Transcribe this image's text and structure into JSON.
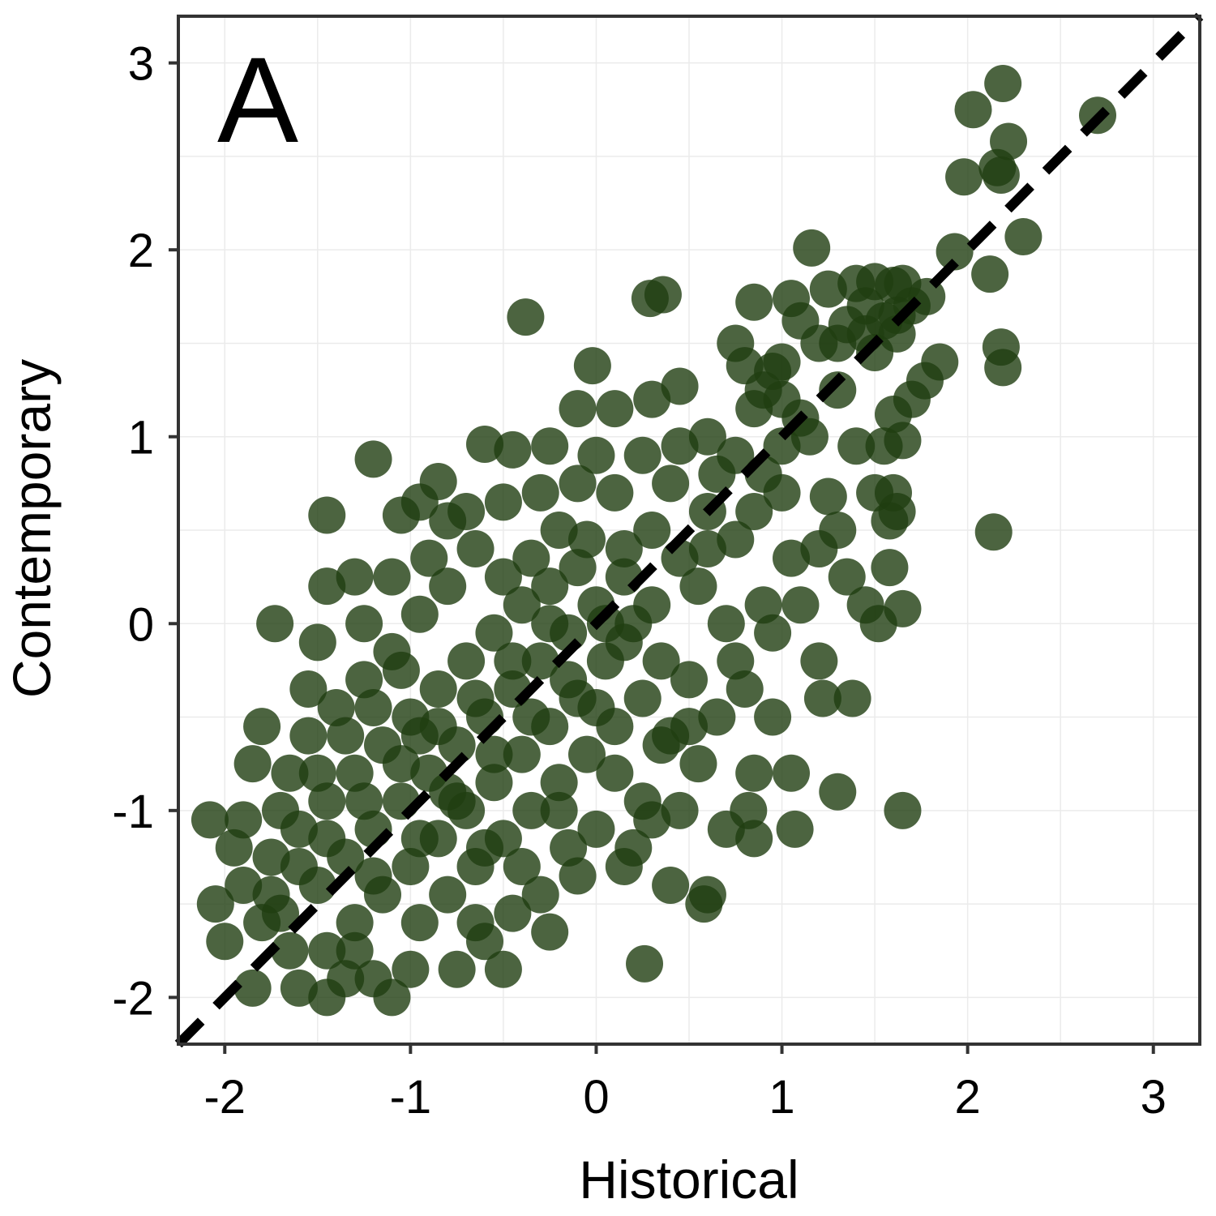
{
  "chart_data": {
    "type": "scatter",
    "panel_label": "A",
    "xlabel": "Historical",
    "ylabel": "Contemporary",
    "xlim": [
      -2.25,
      3.25
    ],
    "ylim": [
      -2.25,
      3.25
    ],
    "xticks": [
      "-2",
      "-1",
      "0",
      "1",
      "2",
      "3"
    ],
    "yticks": [
      "-2",
      "-1",
      "0",
      "1",
      "2",
      "3"
    ],
    "grid": true,
    "legend": "none",
    "point_color": "#1f3d10",
    "reference_line": {
      "type": "y=x",
      "style": "dashed",
      "color": "#000000"
    },
    "series": [
      {
        "points": [
          [
            2.19,
            2.89
          ],
          [
            2.7,
            2.72
          ],
          [
            2.03,
            2.75
          ],
          [
            2.22,
            2.58
          ],
          [
            2.16,
            2.44
          ],
          [
            2.18,
            2.4
          ],
          [
            1.98,
            2.39
          ],
          [
            2.3,
            2.07
          ],
          [
            1.16,
            2.01
          ],
          [
            1.93,
            1.99
          ],
          [
            2.12,
            1.87
          ],
          [
            2.18,
            1.48
          ],
          [
            2.19,
            1.37
          ],
          [
            2.14,
            0.49
          ],
          [
            0.36,
            1.76
          ],
          [
            0.29,
            1.74
          ],
          [
            -0.38,
            1.64
          ],
          [
            0.85,
            1.72
          ],
          [
            1.05,
            1.74
          ],
          [
            1.25,
            1.79
          ],
          [
            1.5,
            1.83
          ],
          [
            1.6,
            1.81
          ],
          [
            1.65,
            1.82
          ],
          [
            1.78,
            1.75
          ],
          [
            1.45,
            1.7
          ],
          [
            1.55,
            1.62
          ],
          [
            1.62,
            1.55
          ],
          [
            1.35,
            1.6
          ],
          [
            1.2,
            1.5
          ],
          [
            1.1,
            1.62
          ],
          [
            0.75,
            1.5
          ],
          [
            0.8,
            1.38
          ],
          [
            0.95,
            1.35
          ],
          [
            1.0,
            1.4
          ],
          [
            1.85,
            1.4
          ],
          [
            1.77,
            1.3
          ],
          [
            1.7,
            1.2
          ],
          [
            1.6,
            1.12
          ],
          [
            -0.02,
            1.38
          ],
          [
            0.1,
            1.15
          ],
          [
            -0.1,
            1.15
          ],
          [
            0.3,
            1.2
          ],
          [
            0.45,
            1.27
          ],
          [
            0.85,
            1.15
          ],
          [
            0.6,
            1.0
          ],
          [
            1.1,
            1.1
          ],
          [
            1.15,
            1.0
          ],
          [
            1.3,
            1.25
          ],
          [
            1.4,
            0.95
          ],
          [
            1.55,
            0.95
          ],
          [
            1.65,
            0.98
          ],
          [
            -0.6,
            0.96
          ],
          [
            -0.45,
            0.93
          ],
          [
            -0.25,
            0.95
          ],
          [
            0.0,
            0.9
          ],
          [
            -1.2,
            0.88
          ],
          [
            -0.85,
            0.76
          ],
          [
            -0.95,
            0.65
          ],
          [
            -1.45,
            0.58
          ],
          [
            -1.05,
            0.58
          ],
          [
            -0.8,
            0.55
          ],
          [
            1.0,
            0.7
          ],
          [
            1.25,
            0.68
          ],
          [
            1.5,
            0.7
          ],
          [
            1.6,
            0.7
          ],
          [
            1.62,
            0.6
          ],
          [
            1.58,
            0.55
          ],
          [
            1.3,
            0.5
          ],
          [
            1.2,
            0.4
          ],
          [
            1.05,
            0.35
          ],
          [
            1.1,
            0.1
          ],
          [
            1.35,
            0.25
          ],
          [
            1.45,
            0.1
          ],
          [
            1.58,
            0.3
          ],
          [
            1.65,
            0.08
          ],
          [
            1.52,
            0.0
          ],
          [
            0.95,
            -0.05
          ],
          [
            1.2,
            -0.2
          ],
          [
            1.22,
            -0.4
          ],
          [
            1.38,
            -0.4
          ],
          [
            0.95,
            -0.5
          ],
          [
            0.85,
            -0.8
          ],
          [
            0.82,
            -1.0
          ],
          [
            1.05,
            -0.8
          ],
          [
            1.3,
            -0.9
          ],
          [
            1.65,
            -1.0
          ],
          [
            1.07,
            -1.1
          ],
          [
            0.85,
            -1.15
          ],
          [
            0.7,
            -1.1
          ],
          [
            -1.73,
            0.0
          ],
          [
            -1.45,
            0.2
          ],
          [
            -1.3,
            0.25
          ],
          [
            -1.5,
            -0.1
          ],
          [
            -1.55,
            -0.35
          ],
          [
            -1.8,
            -0.55
          ],
          [
            -1.85,
            -0.75
          ],
          [
            -2.08,
            -1.05
          ],
          [
            -1.9,
            -1.05
          ],
          [
            -2.05,
            -1.5
          ],
          [
            -2.0,
            -1.7
          ],
          [
            -1.85,
            -1.95
          ],
          [
            -1.6,
            -1.95
          ],
          [
            -1.45,
            -2.0
          ],
          [
            -1.1,
            -2.0
          ],
          [
            -1.3,
            -1.75
          ],
          [
            -0.5,
            -1.85
          ],
          [
            -0.65,
            -1.6
          ],
          [
            -0.25,
            -1.65
          ],
          [
            0.26,
            -1.82
          ],
          [
            0.58,
            -1.5
          ],
          [
            0.4,
            -1.4
          ],
          [
            0.15,
            -1.3
          ],
          [
            -0.1,
            -1.35
          ],
          [
            0.6,
            -1.45
          ],
          [
            0.45,
            -1.0
          ],
          [
            0.3,
            -1.05
          ],
          [
            0.55,
            -0.75
          ],
          [
            0.4,
            -0.6
          ],
          [
            0.65,
            -0.5
          ],
          [
            0.5,
            -0.3
          ],
          [
            0.75,
            -0.2
          ],
          [
            0.8,
            -0.35
          ],
          [
            0.7,
            0.0
          ],
          [
            0.55,
            0.2
          ],
          [
            0.9,
            0.1
          ],
          [
            0.75,
            0.45
          ],
          [
            0.6,
            0.6
          ],
          [
            0.85,
            0.6
          ],
          [
            0.4,
            0.75
          ],
          [
            0.3,
            0.5
          ],
          [
            0.15,
            0.4
          ],
          [
            -0.1,
            0.3
          ],
          [
            -0.25,
            0.2
          ],
          [
            -0.4,
            0.1
          ],
          [
            -0.55,
            -0.05
          ],
          [
            -0.7,
            -0.2
          ],
          [
            -0.85,
            -0.35
          ],
          [
            -1.0,
            -0.5
          ],
          [
            -1.15,
            -0.65
          ],
          [
            -1.3,
            -0.8
          ],
          [
            -1.45,
            -0.95
          ],
          [
            -1.6,
            -1.1
          ],
          [
            -1.75,
            -1.25
          ],
          [
            -1.9,
            -1.4
          ],
          [
            -1.7,
            -1.55
          ],
          [
            -1.5,
            -1.4
          ],
          [
            -1.35,
            -1.25
          ],
          [
            -1.2,
            -1.1
          ],
          [
            -1.05,
            -0.95
          ],
          [
            -0.9,
            -0.8
          ],
          [
            -0.75,
            -0.65
          ],
          [
            -0.6,
            -0.5
          ],
          [
            -0.45,
            -0.35
          ],
          [
            -0.3,
            -0.2
          ],
          [
            -0.15,
            -0.05
          ],
          [
            0.0,
            0.1
          ],
          [
            0.15,
            0.25
          ],
          [
            0.05,
            -0.2
          ],
          [
            -0.1,
            -0.4
          ],
          [
            -0.25,
            -0.55
          ],
          [
            -0.4,
            -0.7
          ],
          [
            -0.55,
            -0.85
          ],
          [
            -0.7,
            -1.0
          ],
          [
            -0.85,
            -1.15
          ],
          [
            -1.0,
            -1.3
          ],
          [
            -1.15,
            -1.45
          ],
          [
            -1.3,
            -1.6
          ],
          [
            -1.45,
            -1.75
          ],
          [
            -0.95,
            -1.6
          ],
          [
            -0.8,
            -1.45
          ],
          [
            -0.65,
            -1.3
          ],
          [
            -0.5,
            -1.15
          ],
          [
            -0.35,
            -1.0
          ],
          [
            -0.2,
            -0.85
          ],
          [
            -0.05,
            -0.7
          ],
          [
            0.1,
            -0.55
          ],
          [
            0.25,
            -0.4
          ],
          [
            0.35,
            -0.2
          ],
          [
            0.2,
            0.0
          ],
          [
            -0.2,
            0.5
          ],
          [
            -0.35,
            0.35
          ],
          [
            -0.5,
            0.25
          ],
          [
            -0.65,
            0.4
          ],
          [
            -0.8,
            0.2
          ],
          [
            -0.95,
            0.05
          ],
          [
            -1.1,
            -0.15
          ],
          [
            -1.25,
            -0.3
          ],
          [
            -1.4,
            -0.45
          ],
          [
            -1.55,
            -0.6
          ],
          [
            -1.65,
            -0.8
          ],
          [
            -1.25,
            0.0
          ],
          [
            -1.1,
            0.25
          ],
          [
            -0.9,
            0.35
          ],
          [
            -0.7,
            0.6
          ],
          [
            -0.5,
            0.65
          ],
          [
            -0.3,
            0.7
          ],
          [
            -0.1,
            0.75
          ],
          [
            0.1,
            0.7
          ],
          [
            0.25,
            0.9
          ],
          [
            0.45,
            0.95
          ],
          [
            -0.05,
            0.45
          ],
          [
            0.1,
            -0.8
          ],
          [
            0.25,
            -0.95
          ],
          [
            0.0,
            -1.1
          ],
          [
            -0.15,
            -1.2
          ],
          [
            -0.3,
            -1.45
          ],
          [
            -0.45,
            -1.55
          ],
          [
            -0.6,
            -1.7
          ],
          [
            -0.75,
            -1.85
          ],
          [
            -1.0,
            -1.85
          ],
          [
            -1.2,
            -1.9
          ],
          [
            -1.35,
            -1.9
          ],
          [
            -1.65,
            -1.75
          ],
          [
            -1.8,
            -1.6
          ],
          [
            -1.95,
            -1.2
          ],
          [
            -1.7,
            -1.0
          ],
          [
            -1.5,
            -0.8
          ],
          [
            -1.35,
            -0.6
          ],
          [
            -1.2,
            -0.45
          ],
          [
            -1.05,
            -0.25
          ],
          [
            -0.95,
            -0.6
          ],
          [
            -0.8,
            -0.9
          ],
          [
            -0.6,
            -1.2
          ],
          [
            -0.4,
            -1.3
          ],
          [
            -0.2,
            -1.0
          ],
          [
            0.0,
            -0.45
          ],
          [
            0.15,
            -0.1
          ],
          [
            0.3,
            0.1
          ],
          [
            0.45,
            0.35
          ],
          [
            0.6,
            0.4
          ],
          [
            0.35,
            -0.65
          ],
          [
            0.5,
            -0.55
          ],
          [
            0.2,
            -1.2
          ],
          [
            -0.25,
            0.0
          ],
          [
            -0.45,
            -0.2
          ],
          [
            -0.65,
            -0.4
          ],
          [
            -0.85,
            -0.55
          ],
          [
            -1.05,
            -0.75
          ],
          [
            -1.25,
            -0.95
          ],
          [
            -1.45,
            -1.15
          ],
          [
            -1.6,
            -1.3
          ],
          [
            -1.75,
            -1.45
          ],
          [
            -1.2,
            -1.35
          ],
          [
            -0.95,
            -1.15
          ],
          [
            -0.75,
            -0.95
          ],
          [
            -0.55,
            -0.7
          ],
          [
            -0.35,
            -0.5
          ],
          [
            -0.15,
            -0.3
          ],
          [
            0.05,
            0.0
          ],
          [
            1.45,
            1.55
          ],
          [
            1.5,
            1.45
          ],
          [
            1.62,
            1.65
          ],
          [
            1.7,
            1.7
          ],
          [
            1.4,
            1.82
          ],
          [
            1.3,
            1.5
          ],
          [
            1.0,
            1.2
          ],
          [
            0.9,
            1.25
          ],
          [
            0.75,
            0.9
          ],
          [
            0.9,
            0.8
          ],
          [
            1.0,
            0.95
          ],
          [
            0.65,
            0.8
          ]
        ]
      }
    ]
  }
}
